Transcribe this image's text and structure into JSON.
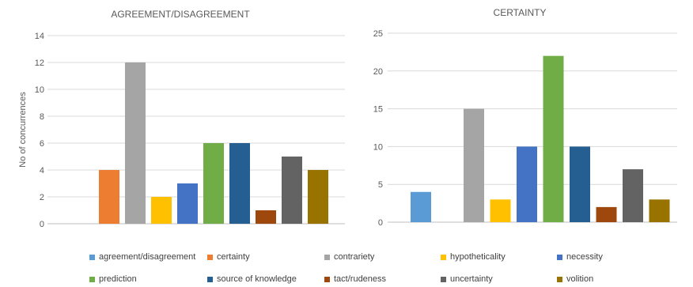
{
  "colors": {
    "agreement/disagreement": "#5b9bd5",
    "certainty": "#ed7d31",
    "contrariety": "#a5a5a5",
    "hypotheticality": "#ffc000",
    "necessity": "#4472c4",
    "prediction": "#70ad47",
    "source of knowledge": "#255e91",
    "tact/rudeness": "#9e480e",
    "uncertainty": "#636363",
    "volition": "#997300"
  },
  "legend": {
    "position": "bottom",
    "items": [
      "agreement/disagreement",
      "certainty",
      "contrariety",
      "hypotheticality",
      "necessity",
      "prediction",
      "source of knowledge",
      "tact/rudeness",
      "uncertainty",
      "volition"
    ]
  },
  "chart_data": [
    {
      "type": "bar",
      "title": "AGREEMENT/DISAGREEMENT",
      "xlabel": "",
      "ylabel": "No of concurrences",
      "ylim": [
        0,
        14
      ],
      "yticks": [
        0,
        2,
        4,
        6,
        8,
        10,
        12,
        14
      ],
      "grid": true,
      "categories": [
        "agreement/disagreement",
        "certainty",
        "contrariety",
        "hypotheticality",
        "necessity",
        "prediction",
        "source of knowledge",
        "tact/rudeness",
        "uncertainty",
        "volition"
      ],
      "values": [
        0,
        4,
        12,
        2,
        3,
        6,
        6,
        1,
        5,
        4
      ]
    },
    {
      "type": "bar",
      "title": "CERTAINTY",
      "xlabel": "",
      "ylabel": "",
      "ylim": [
        0,
        25
      ],
      "yticks": [
        0,
        5,
        10,
        15,
        20,
        25
      ],
      "grid": true,
      "categories": [
        "agreement/disagreement",
        "certainty",
        "contrariety",
        "hypotheticality",
        "necessity",
        "prediction",
        "source of knowledge",
        "tact/rudeness",
        "uncertainty",
        "volition"
      ],
      "values": [
        4,
        0,
        15,
        3,
        10,
        22,
        10,
        2,
        7,
        3
      ]
    }
  ]
}
